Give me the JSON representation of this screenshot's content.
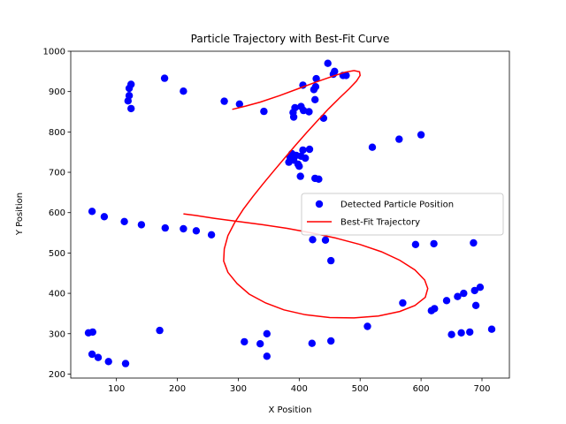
{
  "chart_data": {
    "type": "scatter",
    "title": "Particle Trajectory with Best-Fit Curve",
    "xlabel": "X Position",
    "ylabel": "Y Position",
    "xlim": [
      25,
      745
    ],
    "ylim": [
      190,
      1000
    ],
    "xticks": [
      100,
      200,
      300,
      400,
      500,
      600,
      700
    ],
    "yticks": [
      200,
      300,
      400,
      500,
      600,
      700,
      800,
      900,
      1000
    ],
    "grid": false,
    "legend_position": "center-right",
    "series": [
      {
        "name": "Detected Particle Position",
        "kind": "scatter",
        "color": "#0000ff",
        "points": [
          [
            124,
            918
          ],
          [
            121,
            908
          ],
          [
            121,
            890
          ],
          [
            119,
            877
          ],
          [
            124,
            858
          ],
          [
            179,
            933
          ],
          [
            210,
            901
          ],
          [
            277,
            876
          ],
          [
            302,
            869
          ],
          [
            342,
            851
          ],
          [
            406,
            916
          ],
          [
            428,
            932
          ],
          [
            424,
            905
          ],
          [
            427,
            912
          ],
          [
            426,
            880
          ],
          [
            447,
            970
          ],
          [
            456,
            943
          ],
          [
            458,
            950
          ],
          [
            472,
            940
          ],
          [
            477,
            940
          ],
          [
            390,
            848
          ],
          [
            393,
            860
          ],
          [
            391,
            837
          ],
          [
            403,
            863
          ],
          [
            407,
            853
          ],
          [
            416,
            850
          ],
          [
            440,
            834
          ],
          [
            383,
            725
          ],
          [
            385,
            738
          ],
          [
            388,
            746
          ],
          [
            391,
            730
          ],
          [
            395,
            742
          ],
          [
            398,
            720
          ],
          [
            400,
            715
          ],
          [
            403,
            740
          ],
          [
            406,
            755
          ],
          [
            410,
            735
          ],
          [
            417,
            757
          ],
          [
            402,
            690
          ],
          [
            426,
            685
          ],
          [
            432,
            683
          ],
          [
            520,
            762
          ],
          [
            564,
            782
          ],
          [
            600,
            793
          ],
          [
            60,
            603
          ],
          [
            80,
            590
          ],
          [
            113,
            578
          ],
          [
            141,
            570
          ],
          [
            180,
            562
          ],
          [
            210,
            560
          ],
          [
            231,
            555
          ],
          [
            256,
            545
          ],
          [
            422,
            533
          ],
          [
            443,
            532
          ],
          [
            452,
            481
          ],
          [
            591,
            521
          ],
          [
            621,
            523
          ],
          [
            686,
            525
          ],
          [
            570,
            376
          ],
          [
            617,
            357
          ],
          [
            622,
            362
          ],
          [
            642,
            382
          ],
          [
            660,
            392
          ],
          [
            670,
            400
          ],
          [
            688,
            407
          ],
          [
            697,
            415
          ],
          [
            690,
            370
          ],
          [
            512,
            318
          ],
          [
            650,
            298
          ],
          [
            666,
            302
          ],
          [
            680,
            304
          ],
          [
            716,
            311
          ],
          [
            54,
            302
          ],
          [
            61,
            304
          ],
          [
            171,
            308
          ],
          [
            310,
            280
          ],
          [
            336,
            275
          ],
          [
            347,
            300
          ],
          [
            347,
            244
          ],
          [
            421,
            276
          ],
          [
            452,
            282
          ],
          [
            60,
            249
          ],
          [
            70,
            241
          ],
          [
            87,
            231
          ],
          [
            115,
            226
          ]
        ]
      },
      {
        "name": "Best-Fit Trajectory",
        "kind": "line",
        "color": "#ff0000",
        "points": [
          [
            210,
            597
          ],
          [
            230,
            593
          ],
          [
            260,
            586
          ],
          [
            300,
            578
          ],
          [
            340,
            570
          ],
          [
            380,
            561
          ],
          [
            420,
            550
          ],
          [
            460,
            537
          ],
          [
            500,
            521
          ],
          [
            535,
            503
          ],
          [
            565,
            482
          ],
          [
            590,
            458
          ],
          [
            606,
            433
          ],
          [
            611,
            412
          ],
          [
            607,
            390
          ],
          [
            590,
            370
          ],
          [
            565,
            355
          ],
          [
            530,
            344
          ],
          [
            490,
            339
          ],
          [
            450,
            340
          ],
          [
            410,
            347
          ],
          [
            375,
            359
          ],
          [
            345,
            376
          ],
          [
            318,
            398
          ],
          [
            298,
            424
          ],
          [
            283,
            452
          ],
          [
            276,
            480
          ],
          [
            277,
            510
          ],
          [
            283,
            543
          ],
          [
            294,
            575
          ],
          [
            308,
            608
          ],
          [
            324,
            640
          ],
          [
            341,
            672
          ],
          [
            358,
            703
          ],
          [
            376,
            735
          ],
          [
            394,
            767
          ],
          [
            412,
            798
          ],
          [
            430,
            828
          ],
          [
            448,
            857
          ],
          [
            466,
            884
          ],
          [
            482,
            907
          ],
          [
            494,
            926
          ],
          [
            500,
            940
          ],
          [
            499,
            949
          ],
          [
            490,
            952
          ],
          [
            475,
            948
          ],
          [
            455,
            938
          ],
          [
            430,
            925
          ],
          [
            400,
            908
          ],
          [
            368,
            890
          ],
          [
            336,
            874
          ],
          [
            312,
            864
          ],
          [
            290,
            856
          ]
        ]
      }
    ]
  }
}
